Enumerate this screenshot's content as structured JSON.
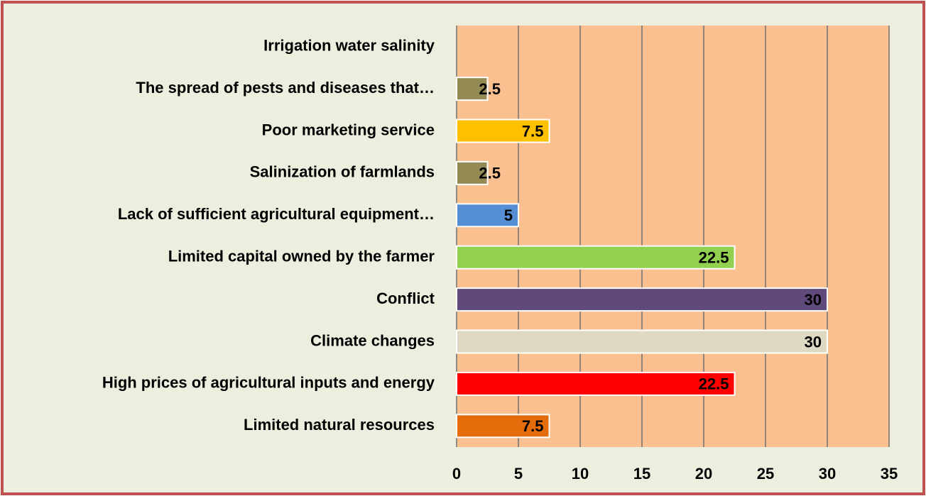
{
  "chart_data": {
    "type": "bar",
    "orientation": "horizontal",
    "categories": [
      "Limited natural resources",
      "High prices of agricultural inputs and energy",
      "Climate changes",
      "Conflict",
      "Limited capital owned by the farmer",
      "Lack of sufficient agricultural equipment…",
      "Salinization of farmlands",
      "Poor marketing service",
      "The spread of pests and diseases that…",
      "Irrigation water salinity"
    ],
    "values": [
      7.5,
      22.5,
      30,
      30,
      22.5,
      5,
      2.5,
      7.5,
      2.5,
      null
    ],
    "colors": [
      "#e46c0a",
      "#ff0000",
      "#ddd9c3",
      "#604a7b",
      "#92d050",
      "#558ed5",
      "#948a54",
      "#ffc000",
      "#948a54",
      "#948a54"
    ],
    "xlim": [
      0,
      35
    ],
    "xticks": [
      0,
      5,
      10,
      15,
      20,
      25,
      30,
      35
    ],
    "grid": true
  }
}
